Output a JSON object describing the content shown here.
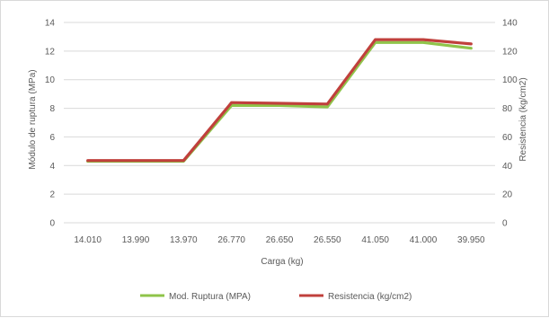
{
  "chart_data": {
    "type": "line",
    "categories": [
      "14.010",
      "13.990",
      "13.970",
      "26.770",
      "26.650",
      "26.550",
      "41.050",
      "41.000",
      "39.950"
    ],
    "xlabel": "Carga (kg)",
    "ylabel": "Módulo de ruptura (MPa)",
    "y2label": "Resistencia (kg/cm2)",
    "ylim": [
      0,
      14
    ],
    "y2lim": [
      0,
      140
    ],
    "yticks": [
      "0",
      "2",
      "4",
      "6",
      "8",
      "10",
      "12",
      "14"
    ],
    "y2ticks": [
      "0",
      "20",
      "40",
      "60",
      "80",
      "100",
      "120",
      "140"
    ],
    "grid": true,
    "legend_position": "bottom",
    "series": [
      {
        "name": "Mod. Ruptura (MPA)",
        "axis": "left",
        "color": "#8fc44a",
        "values": [
          4.3,
          4.3,
          4.3,
          8.2,
          8.2,
          8.1,
          12.6,
          12.6,
          12.2
        ]
      },
      {
        "name": "Resistencia (kg/cm2)",
        "axis": "right",
        "color": "#c0403c",
        "values": [
          43.5,
          43.5,
          43.5,
          84,
          83.5,
          83,
          128,
          128,
          125
        ]
      }
    ]
  }
}
